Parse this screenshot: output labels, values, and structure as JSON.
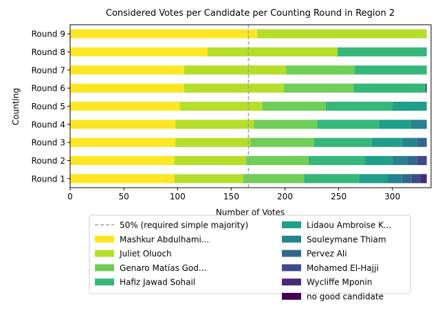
{
  "chart_data": {
    "type": "bar",
    "orientation": "horizontal",
    "stacked": true,
    "title": "Considered Votes per Candidate per Counting Round in Region 2",
    "xlabel": "Number of Votes",
    "ylabel": "Counting",
    "xlim": [
      0,
      336
    ],
    "xticks": [
      0,
      50,
      100,
      150,
      200,
      250,
      300
    ],
    "majority_line": {
      "label": "50% (required simple majority)",
      "value": 166,
      "color": "#a0a0a0"
    },
    "categories": [
      "Round 1",
      "Round 2",
      "Round 3",
      "Round 4",
      "Round 5",
      "Round 6",
      "Round 7",
      "Round 8",
      "Round 9"
    ],
    "series": [
      {
        "name": "Mashkur Abdulhami...",
        "color": "#fde725",
        "values": [
          97,
          97,
          98,
          98,
          102,
          106,
          106,
          128,
          174
        ]
      },
      {
        "name": "Juliet Oluoch",
        "color": "#b5de2b",
        "values": [
          64,
          67,
          70,
          73,
          77,
          93,
          95,
          121,
          158
        ]
      },
      {
        "name": "Genaro Matías God...",
        "color": "#6ece58",
        "values": [
          57,
          58,
          59,
          59,
          59,
          65,
          64,
          0,
          0
        ]
      },
      {
        "name": "Hafiz Jawad Sohail",
        "color": "#35b779",
        "values": [
          51,
          52,
          54,
          58,
          62,
          67,
          67,
          83,
          0
        ]
      },
      {
        "name": "Lidaou Ambroise K...",
        "color": "#1f9e89",
        "values": [
          27,
          26,
          28,
          29,
          32,
          0,
          0,
          0,
          0
        ]
      },
      {
        "name": "Souleymane Thiam",
        "color": "#26828e",
        "values": [
          13,
          14,
          14,
          15,
          0,
          0,
          0,
          0,
          0
        ]
      },
      {
        "name": "Pervez Ali",
        "color": "#31688e",
        "values": [
          9,
          9,
          9,
          0,
          0,
          0,
          0,
          0,
          0
        ]
      },
      {
        "name": "Mohamed El-Hajji",
        "color": "#3e4989",
        "values": [
          8,
          9,
          0,
          0,
          0,
          0,
          0,
          0,
          0
        ]
      },
      {
        "name": "Wycliffe Mponin",
        "color": "#482878",
        "values": [
          6,
          0,
          0,
          0,
          0,
          1,
          0,
          0,
          0
        ]
      },
      {
        "name": "no good candidate",
        "color": "#440154",
        "values": [
          0,
          0,
          0,
          0,
          0,
          0,
          0,
          0,
          0
        ]
      }
    ],
    "grid": false,
    "legend_position": "bottom, below axes"
  }
}
